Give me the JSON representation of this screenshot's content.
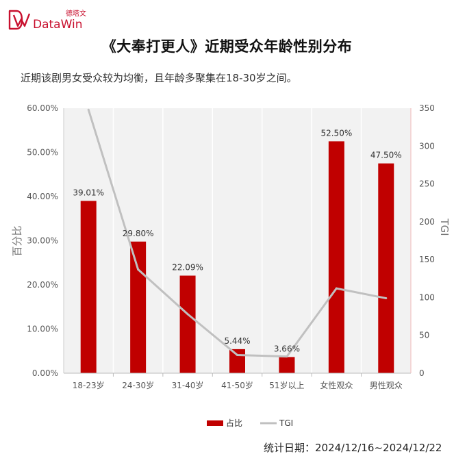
{
  "brand": {
    "name": "DataWin",
    "tag": "德塔文",
    "color": "#c8102e"
  },
  "header": {
    "title": "《大奉打更人》近期受众年龄性别分布",
    "subtitle": "近期该剧男女受众较为均衡，且年龄多聚集在18-30岁之间。"
  },
  "footer": {
    "date": "统计日期：2024/12/16~2024/12/22"
  },
  "chart_data": {
    "type": "bar",
    "categories": [
      "18-23岁",
      "24-30岁",
      "31-40岁",
      "41-50岁",
      "51岁以上",
      "女性观众",
      "男性观众"
    ],
    "series": [
      {
        "name": "占比",
        "kind": "bar",
        "axis": "left",
        "color": "#c00000",
        "values": [
          39.01,
          29.8,
          22.09,
          5.44,
          3.66,
          52.5,
          47.5
        ],
        "labels": [
          "39.01%",
          "29.80%",
          "22.09%",
          "5.44%",
          "3.66%",
          "52.50%",
          "47.50%"
        ]
      },
      {
        "name": "TGI",
        "kind": "line",
        "axis": "right",
        "color": "#c0c0c0",
        "values": [
          348,
          137,
          78,
          24,
          22,
          112,
          99
        ]
      }
    ],
    "ylabel": "百分比",
    "y2label": "TGI",
    "ylim": [
      0,
      60
    ],
    "y2lim": [
      0,
      350
    ],
    "yticks": [
      "0.00%",
      "10.00%",
      "20.00%",
      "30.00%",
      "40.00%",
      "50.00%",
      "60.00%"
    ],
    "y2ticks": [
      "0",
      "50",
      "100",
      "150",
      "200",
      "250",
      "300",
      "350"
    ],
    "grid": false,
    "legend": "bottom-center"
  }
}
